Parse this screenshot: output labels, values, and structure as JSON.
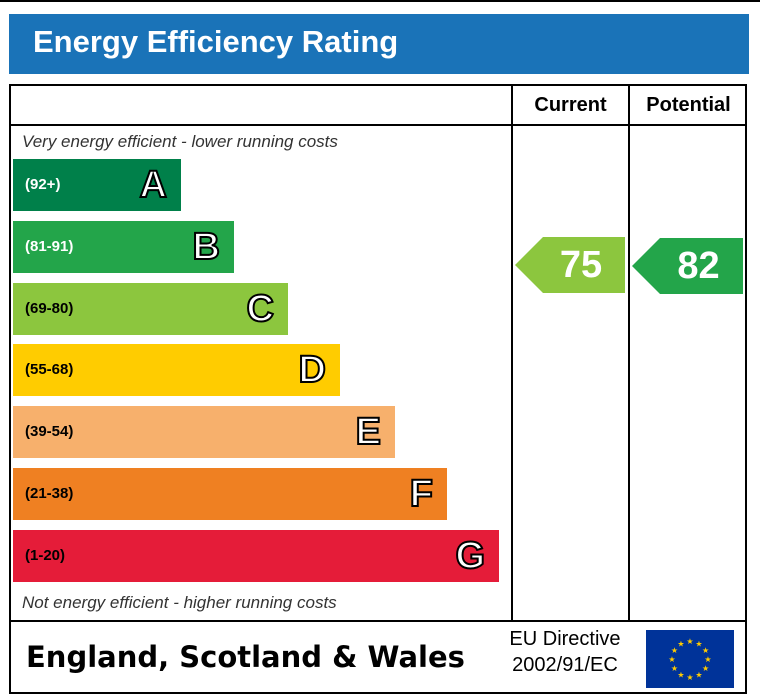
{
  "title": "Energy Efficiency Rating",
  "columns": {
    "current": "Current",
    "potential": "Potential"
  },
  "notes": {
    "top": "Very energy efficient - lower running costs",
    "bottom": "Not energy efficient - higher running costs"
  },
  "footer": {
    "region": "England, Scotland & Wales",
    "directive_line1": "EU Directive",
    "directive_line2": "2002/91/EC"
  },
  "colors": {
    "header": "#1a73b8",
    "A": "#00804a",
    "B": "#23a54a",
    "C": "#8cc63e",
    "D": "#ffcc00",
    "E": "#f7b06c",
    "F": "#ef8022",
    "G": "#e51c39"
  },
  "icons": {
    "flag": "eu-flag-icon"
  },
  "chart_data": {
    "type": "bar",
    "categories": [
      "A",
      "B",
      "C",
      "D",
      "E",
      "F",
      "G"
    ],
    "ranges": [
      "(92+)",
      "(81-91)",
      "(69-80)",
      "(55-68)",
      "(39-54)",
      "(21-38)",
      "(1-20)"
    ],
    "current": {
      "value": 75,
      "band": "C"
    },
    "potential": {
      "value": 82,
      "band": "B"
    }
  }
}
